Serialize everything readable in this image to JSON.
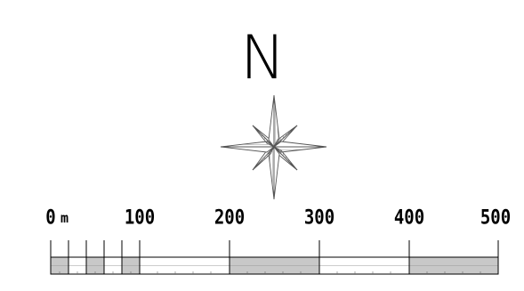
{
  "north_arrow": {
    "label": "N",
    "icon": "compass-rose-icon"
  },
  "scale_bar": {
    "unit": "m",
    "tick_labels": [
      "0",
      "100",
      "200",
      "300",
      "400",
      "500"
    ],
    "fill_color": "#c8c8c8",
    "stroke_color": "#000000"
  }
}
